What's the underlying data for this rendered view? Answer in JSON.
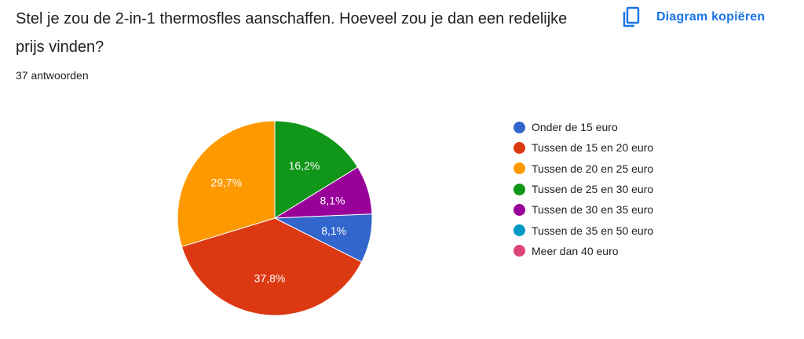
{
  "question": "Stel je zou de 2-in-1 thermosfles aanschaffen. Hoeveel zou je dan een redelijke prijs vinden?",
  "response_count": "37 antwoorden",
  "copy_button": {
    "label": "Diagram kopiëren",
    "icon": "copy-icon",
    "color": "#1a73e8"
  },
  "chart_data": {
    "type": "pie",
    "categories": [
      "Onder de 15 euro",
      "Tussen de 15 en 20 euro",
      "Tussen de 20 en 25 euro",
      "Tussen de 25 en 30 euro",
      "Tussen de 30 en 35 euro",
      "Tussen de 35 en 50 euro",
      "Meer dan 40 euro"
    ],
    "values": [
      8.1,
      37.8,
      29.7,
      16.2,
      8.1,
      0,
      0
    ],
    "labels": [
      "8,1%",
      "37,8%",
      "29,7%",
      "16,2%",
      "8,1%",
      "",
      ""
    ],
    "colors": [
      "#3366cc",
      "#dc3912",
      "#ff9900",
      "#109618",
      "#990099",
      "#0099c6",
      "#dd4477"
    ],
    "slice_order": [
      3,
      4,
      0,
      1,
      2
    ],
    "legend_position": "right"
  }
}
